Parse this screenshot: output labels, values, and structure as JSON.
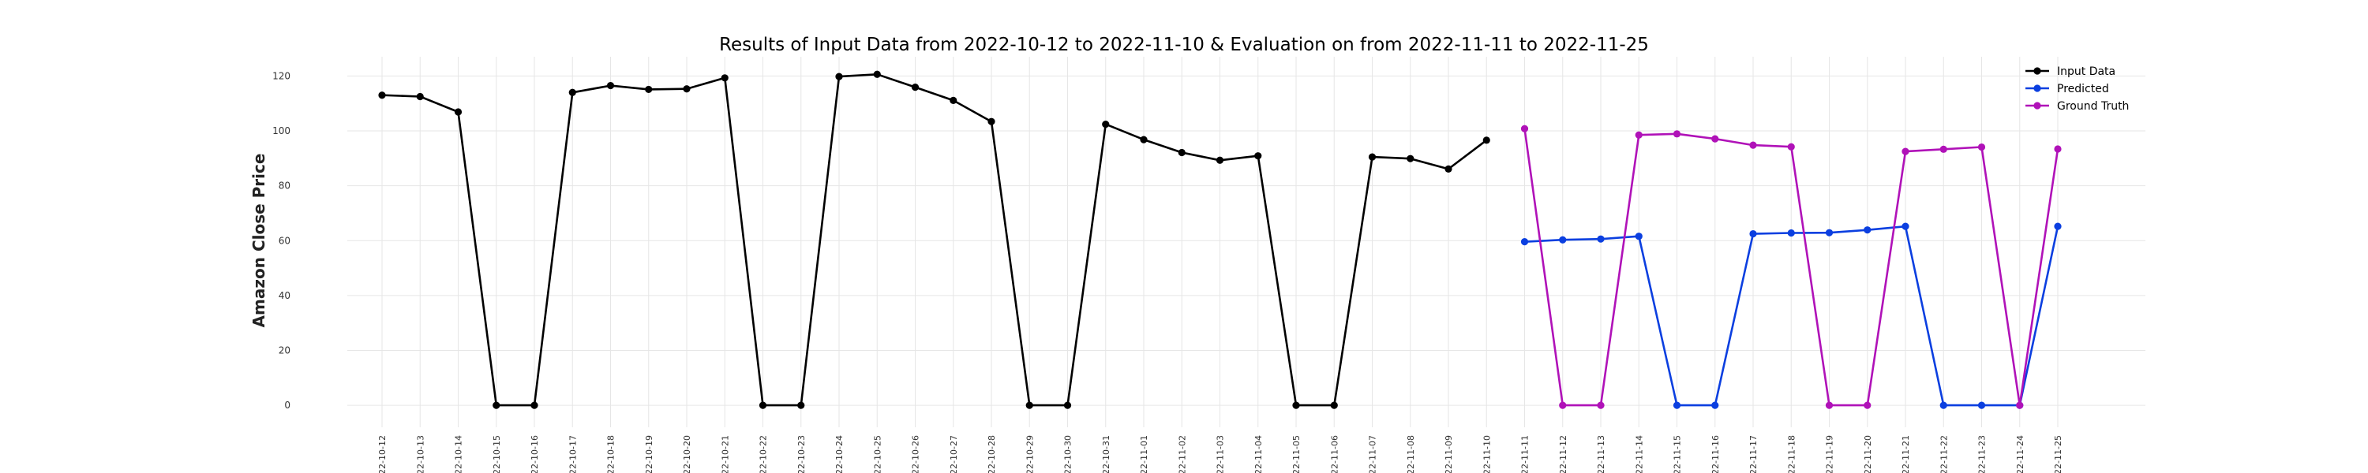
{
  "chart_data": {
    "type": "line",
    "title": "Results of Input Data from 2022-10-12 to 2022-11-10 & Evaluation on from 2022-11-11 to 2022-11-25",
    "xlabel": "",
    "ylabel": "Amazon Close Price",
    "ylim": [
      -8,
      127
    ],
    "yticks": [
      0,
      20,
      40,
      60,
      80,
      100,
      120
    ],
    "grid": true,
    "legend_position": "top-right",
    "dates": [
      "2022-10-12",
      "2022-10-13",
      "2022-10-14",
      "2022-10-15",
      "2022-10-16",
      "2022-10-17",
      "2022-10-18",
      "2022-10-19",
      "2022-10-20",
      "2022-10-21",
      "2022-10-22",
      "2022-10-23",
      "2022-10-24",
      "2022-10-25",
      "2022-10-26",
      "2022-10-27",
      "2022-10-28",
      "2022-10-29",
      "2022-10-30",
      "2022-10-31",
      "2022-11-01",
      "2022-11-02",
      "2022-11-03",
      "2022-11-04",
      "2022-11-05",
      "2022-11-06",
      "2022-11-07",
      "2022-11-08",
      "2022-11-09",
      "2022-11-10",
      "2022-11-11",
      "2022-11-12",
      "2022-11-13",
      "2022-11-14",
      "2022-11-15",
      "2022-11-16",
      "2022-11-17",
      "2022-11-18",
      "2022-11-19",
      "2022-11-20",
      "2022-11-21",
      "2022-11-22",
      "2022-11-23",
      "2022-11-24",
      "2022-11-25"
    ],
    "x_tick_labels": [
      "22-10-12",
      "22-10-13",
      "22-10-14",
      "22-10-15",
      "22-10-16",
      "22-10-17",
      "22-10-18",
      "22-10-19",
      "22-10-20",
      "22-10-21",
      "22-10-22",
      "22-10-23",
      "22-10-24",
      "22-10-25",
      "22-10-26",
      "22-10-27",
      "22-10-28",
      "22-10-29",
      "22-10-30",
      "22-10-31",
      "22-11-01",
      "22-11-02",
      "22-11-03",
      "22-11-04",
      "22-11-05",
      "22-11-06",
      "22-11-07",
      "22-11-08",
      "22-11-09",
      "22-11-10",
      "22-11-11",
      "22-11-12",
      "22-11-13",
      "22-11-14",
      "22-11-15",
      "22-11-16",
      "22-11-17",
      "22-11-18",
      "22-11-19",
      "22-11-20",
      "22-11-21",
      "22-11-22",
      "22-11-23",
      "22-11-24",
      "22-11-25"
    ],
    "series": [
      {
        "name": "Input Data",
        "color": "#000000",
        "x": [
          "2022-10-12",
          "2022-10-13",
          "2022-10-14",
          "2022-10-15",
          "2022-10-16",
          "2022-10-17",
          "2022-10-18",
          "2022-10-19",
          "2022-10-20",
          "2022-10-21",
          "2022-10-22",
          "2022-10-23",
          "2022-10-24",
          "2022-10-25",
          "2022-10-26",
          "2022-10-27",
          "2022-10-28",
          "2022-10-29",
          "2022-10-30",
          "2022-10-31",
          "2022-11-01",
          "2022-11-02",
          "2022-11-03",
          "2022-11-04",
          "2022-11-05",
          "2022-11-06",
          "2022-11-07",
          "2022-11-08",
          "2022-11-09",
          "2022-11-10"
        ],
        "y": [
          113,
          112.5,
          106.9,
          0,
          0,
          114,
          116.5,
          115.1,
          115.3,
          119.3,
          0,
          0,
          119.8,
          120.6,
          115.9,
          111.1,
          103.4,
          0,
          0,
          102.4,
          96.8,
          92.1,
          89.3,
          90.9,
          0,
          0,
          90.5,
          89.9,
          86.1,
          96.6
        ]
      },
      {
        "name": "Predicted",
        "color": "#0b3fe0",
        "x": [
          "2022-11-11",
          "2022-11-12",
          "2022-11-13",
          "2022-11-14",
          "2022-11-15",
          "2022-11-16",
          "2022-11-17",
          "2022-11-18",
          "2022-11-19",
          "2022-11-20",
          "2022-11-21",
          "2022-11-22",
          "2022-11-23",
          "2022-11-24",
          "2022-11-25"
        ],
        "y": [
          59.6,
          60.3,
          60.6,
          61.6,
          0,
          0,
          62.5,
          62.8,
          62.9,
          63.9,
          65.2,
          0,
          0,
          0,
          65.2
        ]
      },
      {
        "name": "Ground Truth",
        "color": "#b012b8",
        "x": [
          "2022-11-11",
          "2022-11-12",
          "2022-11-13",
          "2022-11-14",
          "2022-11-15",
          "2022-11-16",
          "2022-11-17",
          "2022-11-18",
          "2022-11-19",
          "2022-11-20",
          "2022-11-21",
          "2022-11-22",
          "2022-11-23",
          "2022-11-24",
          "2022-11-25"
        ],
        "y": [
          100.8,
          0,
          0,
          98.5,
          98.9,
          97.1,
          94.8,
          94.2,
          0,
          0,
          92.5,
          93.3,
          94.1,
          0,
          93.4
        ]
      }
    ]
  }
}
